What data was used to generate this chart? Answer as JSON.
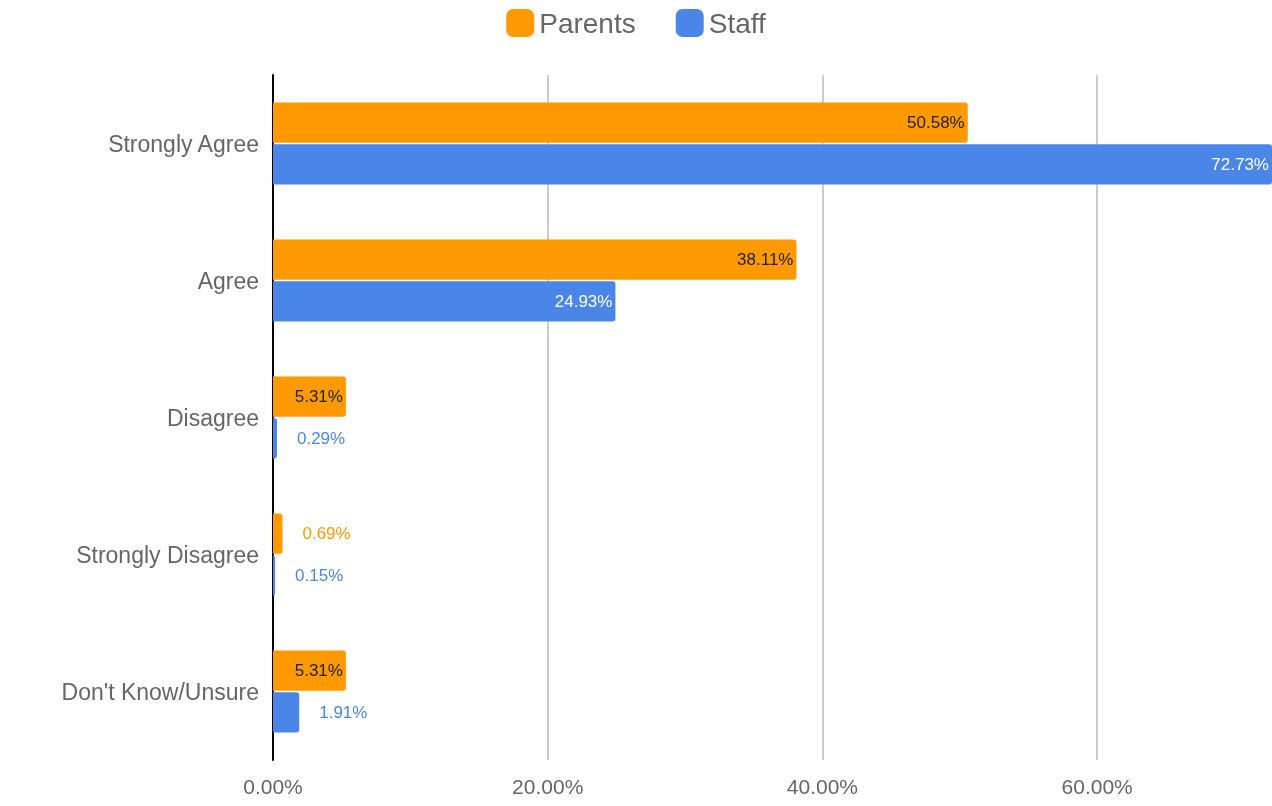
{
  "chart_data": {
    "type": "bar",
    "orientation": "horizontal",
    "categories": [
      "Strongly Agree",
      "Agree",
      "Disagree",
      "Strongly Disagree",
      "Don't Know/Unsure"
    ],
    "series": [
      {
        "name": "Parents",
        "color": "#ff9900",
        "values": [
          50.58,
          38.11,
          5.31,
          0.69,
          5.31
        ],
        "value_labels": [
          "50.58%",
          "38.11%",
          "5.31%",
          "0.69%",
          "5.31%"
        ]
      },
      {
        "name": "Staff",
        "color": "#4a86e8",
        "values": [
          72.73,
          24.93,
          0.29,
          0.15,
          1.91
        ],
        "value_labels": [
          "72.73%",
          "24.93%",
          "0.29%",
          "0.15%",
          "1.91%"
        ]
      }
    ],
    "xlim": [
      0,
      72.73
    ],
    "xticks": [
      {
        "value": 0,
        "label": "0.00%"
      },
      {
        "value": 20,
        "label": "20.00%"
      },
      {
        "value": 40,
        "label": "40.00%"
      },
      {
        "value": 60,
        "label": "60.00%"
      }
    ],
    "grid": "x",
    "legend": "top"
  }
}
